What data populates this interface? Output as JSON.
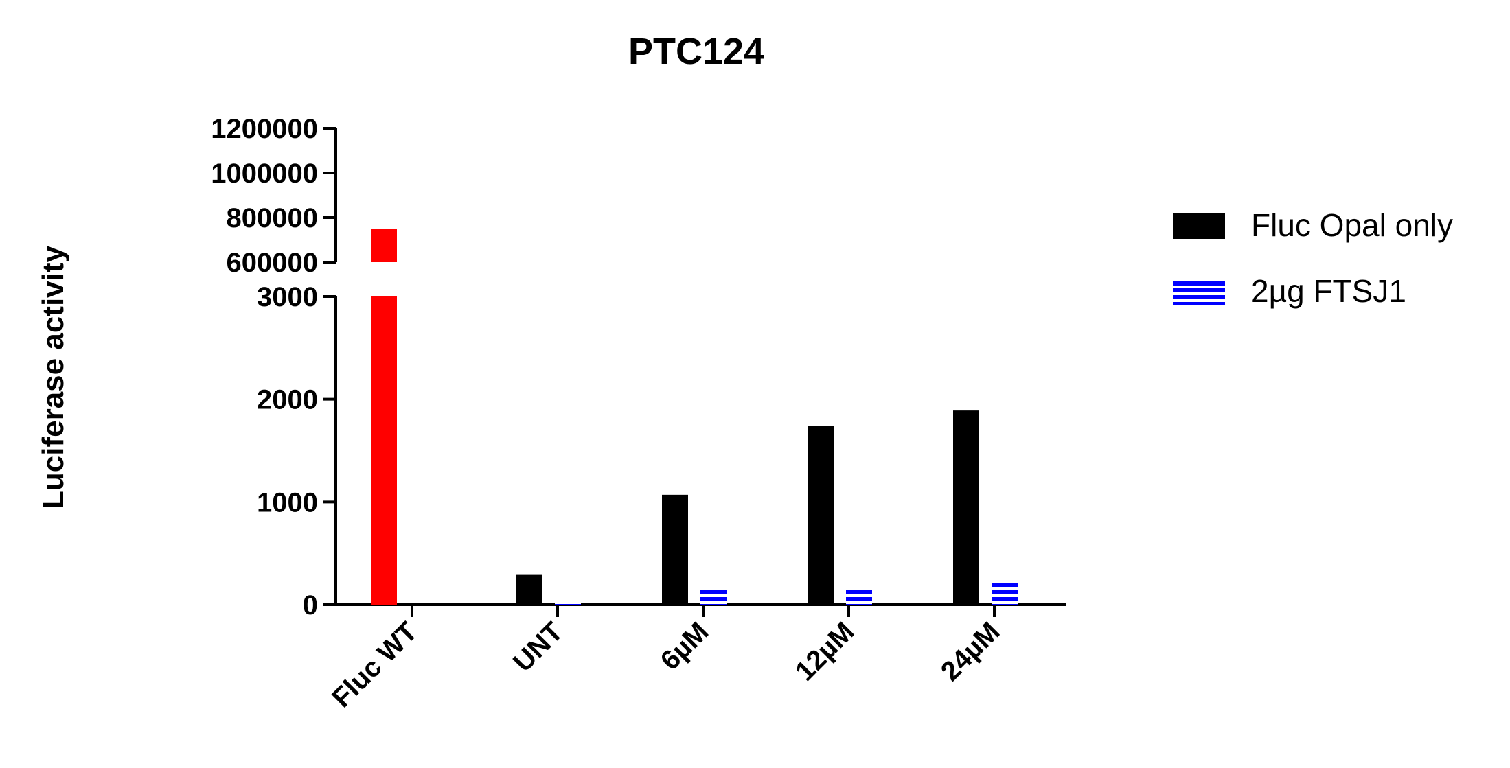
{
  "chart_data": {
    "type": "bar",
    "title": "PTC124",
    "ylabel": "Luciferase activity",
    "xlabel": "",
    "categories": [
      "Fluc WT",
      "UNT",
      "6µM",
      "12µM",
      "24µM"
    ],
    "series": [
      {
        "name": "Fluc Opal only",
        "color": "#000000",
        "pattern": "solid",
        "values": [
          null,
          290,
          1070,
          1740,
          1890
        ]
      },
      {
        "name": "2µg FTSJ1",
        "color": "#0000ff",
        "pattern": "horizontal-stripes",
        "values": [
          null,
          15,
          170,
          165,
          210
        ]
      }
    ],
    "highlight": {
      "category": "Fluc WT",
      "value": 750000,
      "color": "#ff0000"
    },
    "y_axis": {
      "broken": true,
      "lower_segment": {
        "range": [
          0,
          3000
        ],
        "ticks": [
          "0",
          "1000",
          "2000",
          "3000"
        ]
      },
      "upper_segment": {
        "range": [
          600000,
          1200000
        ],
        "ticks": [
          "600000",
          "800000",
          "1000000",
          "1200000"
        ]
      }
    },
    "legend_position": "right",
    "grid": false
  }
}
